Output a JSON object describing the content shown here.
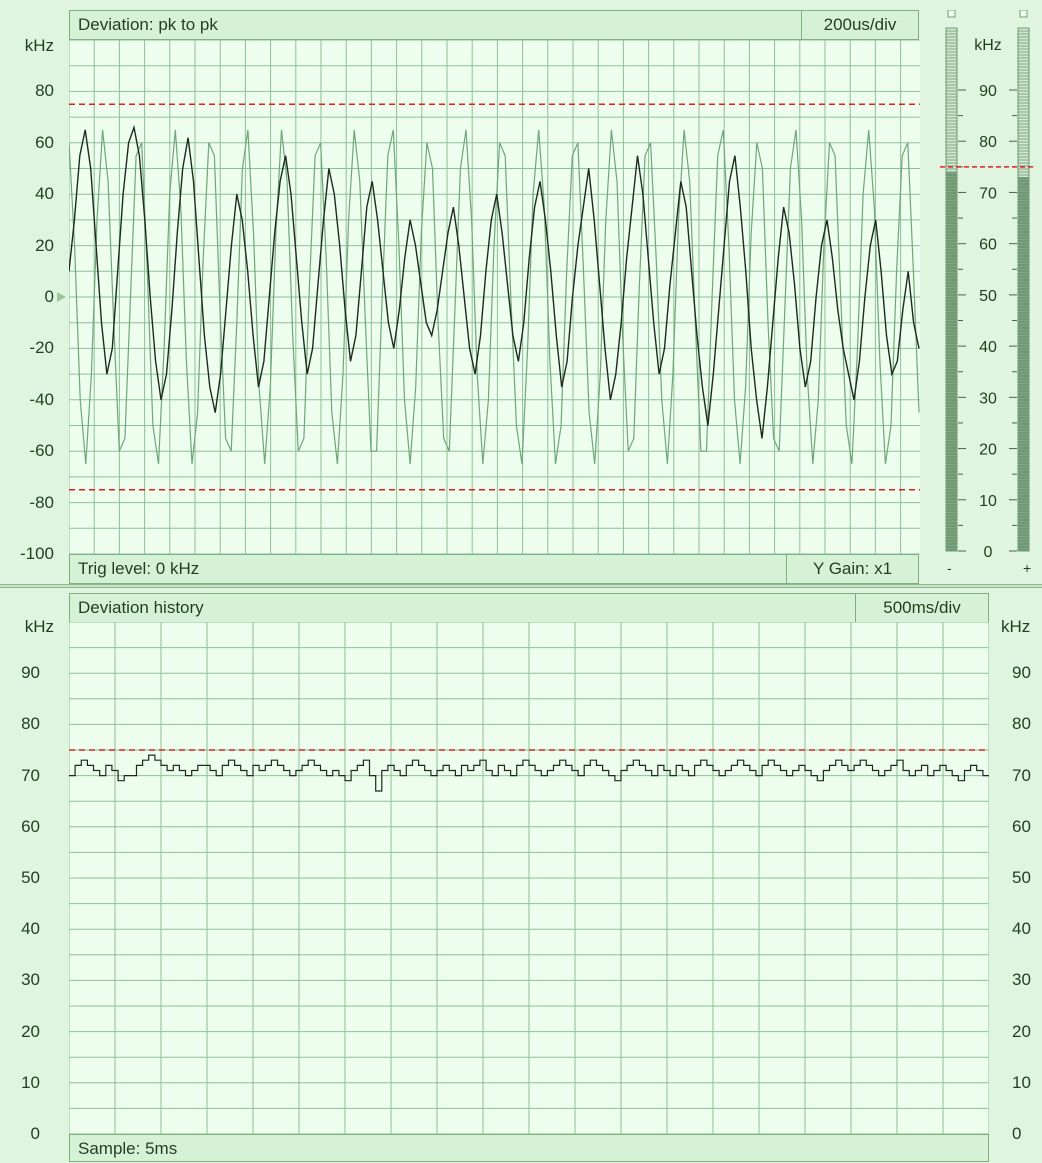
{
  "scope": {
    "title": "Deviation:  pk to pk",
    "timebase": "200us/div",
    "trig_level": "Trig level:  0 kHz",
    "y_gain": "Y Gain:  x1",
    "y_unit": "kHz",
    "y_ticks": [
      "80",
      "60",
      "40",
      "20",
      "0",
      "-20",
      "-40",
      "-60",
      "-80",
      "-100"
    ]
  },
  "meter": {
    "unit": "kHz",
    "ticks": [
      "90",
      "80",
      "70",
      "60",
      "50",
      "40",
      "30",
      "20",
      "10",
      "0"
    ],
    "minus": "-",
    "plus": "+",
    "left_level_khz": 74,
    "right_level_khz": 73
  },
  "history": {
    "title": "Deviation history",
    "timebase": "500ms/div",
    "sample": "Sample:  5ms",
    "unit": "kHz",
    "y_ticks": [
      "90",
      "80",
      "70",
      "60",
      "50",
      "40",
      "30",
      "20",
      "10",
      "0"
    ]
  },
  "colors": {
    "plot_bg": "#edfdee",
    "grid": "#8fbf97",
    "trace_dark": "#1e2a20",
    "trace_light": "#6fa67a",
    "limit": "#e02020"
  },
  "chart_data": [
    {
      "type": "line",
      "title": "Deviation:  pk to pk",
      "ylabel": "kHz",
      "ylim": [
        -100,
        100
      ],
      "limit_lines": [
        75,
        -75
      ],
      "series": [
        {
          "values": [
            10,
            30,
            55,
            65,
            50,
            20,
            -10,
            -30,
            -20,
            10,
            40,
            60,
            66,
            55,
            30,
            0,
            -25,
            -40,
            -30,
            -5,
            25,
            50,
            62,
            45,
            15,
            -15,
            -35,
            -45,
            -30,
            -5,
            20,
            40,
            30,
            10,
            -15,
            -35,
            -25,
            0,
            25,
            45,
            55,
            40,
            15,
            -10,
            -30,
            -20,
            5,
            30,
            50,
            40,
            20,
            -5,
            -25,
            -15,
            10,
            35,
            45,
            30,
            10,
            -10,
            -20,
            -5,
            15,
            30,
            20,
            5,
            -10,
            -15,
            -5,
            10,
            25,
            35,
            20,
            0,
            -20,
            -30,
            -15,
            10,
            30,
            40,
            25,
            5,
            -15,
            -25,
            -10,
            15,
            35,
            45,
            30,
            10,
            -15,
            -35,
            -25,
            0,
            20,
            35,
            50,
            30,
            5,
            -20,
            -40,
            -30,
            -10,
            15,
            35,
            55,
            40,
            15,
            -10,
            -30,
            -20,
            5,
            25,
            45,
            35,
            10,
            -15,
            -35,
            -50,
            -30,
            -5,
            20,
            45,
            55,
            35,
            10,
            -20,
            -40,
            -55,
            -35,
            -10,
            15,
            35,
            25,
            5,
            -20,
            -35,
            -25,
            0,
            20,
            30,
            15,
            -5,
            -20,
            -30,
            -40,
            -25,
            0,
            20,
            30,
            10,
            -15,
            -30,
            -25,
            -5,
            10,
            -10,
            -20
          ]
        },
        {
          "values": [
            60,
            20,
            -40,
            -65,
            -30,
            30,
            65,
            45,
            -10,
            -60,
            -55,
            0,
            55,
            60,
            10,
            -50,
            -65,
            -20,
            40,
            65,
            35,
            -25,
            -65,
            -45,
            15,
            60,
            55,
            -5,
            -55,
            -60,
            -10,
            50,
            65,
            25,
            -35,
            -65,
            -35,
            25,
            65,
            45,
            -15,
            -60,
            -55,
            5,
            55,
            60,
            15,
            -45,
            -65,
            -30,
            30,
            65,
            45,
            -10,
            -60,
            -60,
            0,
            55,
            65,
            20,
            -40,
            -65,
            -35,
            25,
            60,
            50,
            -10,
            -55,
            -60,
            -5,
            50,
            65,
            30,
            -30,
            -65,
            -40,
            20,
            60,
            55,
            0,
            -50,
            -65,
            -20,
            40,
            65,
            35,
            -25,
            -65,
            -50,
            10,
            55,
            60,
            10,
            -45,
            -65,
            -30,
            30,
            65,
            45,
            -15,
            -60,
            -55,
            5,
            55,
            60,
            15,
            -40,
            -65,
            -30,
            30,
            65,
            45,
            -10,
            -60,
            -60,
            0,
            55,
            65,
            20,
            -40,
            -65,
            -35,
            25,
            60,
            50,
            -10,
            -55,
            -60,
            -5,
            50,
            65,
            30,
            -30,
            -65,
            -40,
            20,
            60,
            55,
            0,
            -50,
            -65,
            -20,
            40,
            65,
            35,
            -25,
            -65,
            -50,
            10,
            55,
            60,
            10,
            -45
          ]
        }
      ]
    },
    {
      "type": "line",
      "title": "Deviation history",
      "ylabel": "kHz",
      "ylim": [
        0,
        100
      ],
      "limit_line": 75,
      "series": [
        {
          "values": [
            70,
            72,
            73,
            72,
            71,
            70,
            72,
            71,
            69,
            70,
            70,
            72,
            73,
            74,
            73,
            72,
            71,
            72,
            71,
            70,
            71,
            72,
            72,
            71,
            70,
            72,
            73,
            72,
            71,
            70,
            72,
            71,
            72,
            73,
            72,
            71,
            70,
            71,
            72,
            73,
            72,
            71,
            70,
            71,
            70,
            69,
            71,
            72,
            73,
            70,
            67,
            71,
            72,
            71,
            70,
            72,
            73,
            72,
            71,
            70,
            71,
            72,
            71,
            70,
            72,
            71,
            72,
            73,
            71,
            70,
            72,
            71,
            70,
            72,
            73,
            72,
            71,
            70,
            71,
            72,
            73,
            72,
            71,
            70,
            72,
            73,
            72,
            71,
            70,
            69,
            71,
            72,
            73,
            72,
            71,
            70,
            72,
            71,
            70,
            72,
            71,
            70,
            72,
            73,
            72,
            71,
            70,
            71,
            72,
            73,
            72,
            71,
            70,
            72,
            73,
            72,
            71,
            70,
            71,
            72,
            71,
            70,
            69,
            71,
            72,
            73,
            72,
            71,
            72,
            73,
            72,
            71,
            70,
            71,
            72,
            73,
            71,
            70,
            71,
            72,
            70,
            71,
            72,
            71,
            70,
            69,
            71,
            72,
            71,
            70
          ]
        }
      ]
    }
  ]
}
